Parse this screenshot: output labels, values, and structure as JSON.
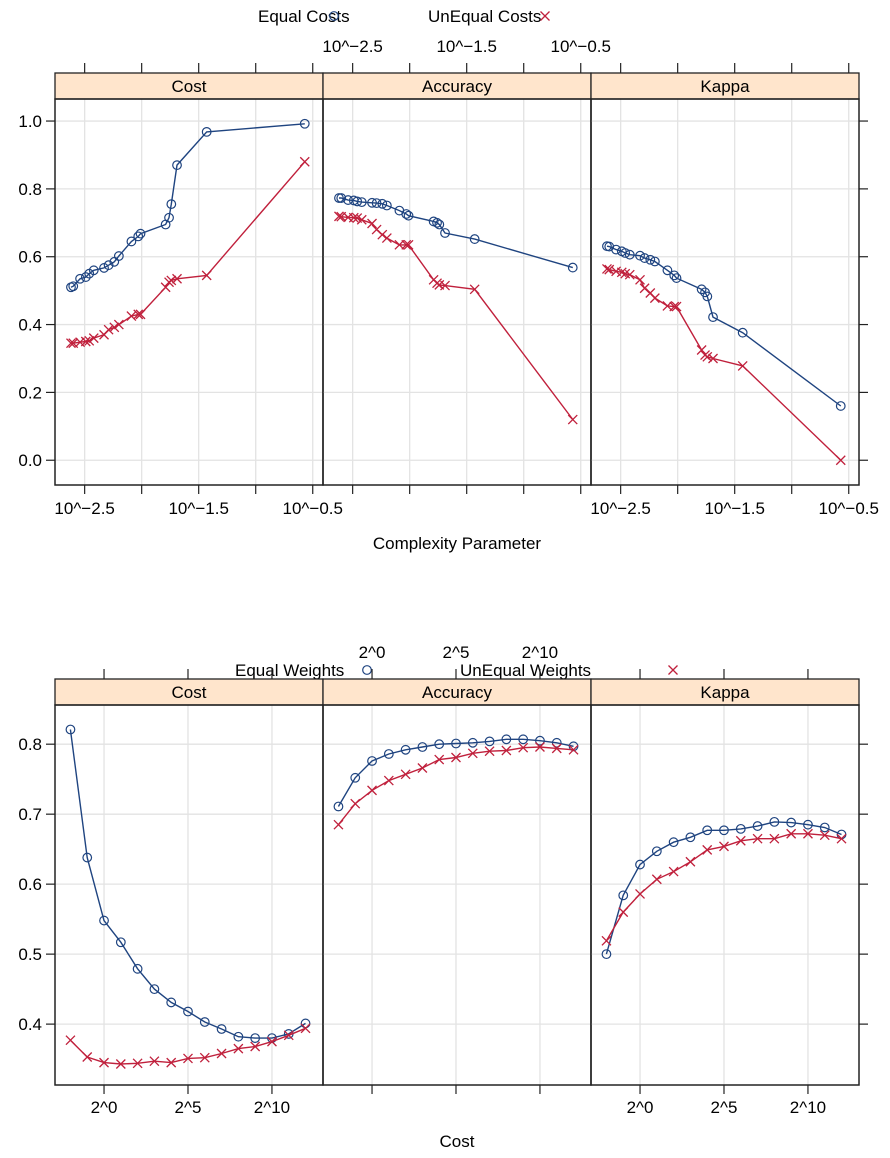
{
  "colors": {
    "equal": "#1f4480",
    "unequal": "#c0203c",
    "strip": "#ffe5cc",
    "grid": "#e3e3e3"
  },
  "chart_data": [
    {
      "type": "line",
      "panels": [
        "Cost",
        "Accuracy",
        "Kappa"
      ],
      "xlabel": "Complexity Parameter",
      "x_scale": "log10",
      "xlim": [
        -2.76,
        -0.41
      ],
      "ylim": [
        -0.073,
        1.065
      ],
      "x_ticks": [
        -2.5,
        -2,
        -1.5,
        -1,
        -0.5
      ],
      "x_tick_labels": [
        {
          "at": -2.5,
          "text": "10^−2.5"
        },
        {
          "at": -1.5,
          "text": "10^−1.5"
        },
        {
          "at": -0.5,
          "text": "10^−0.5"
        }
      ],
      "y_ticks": [
        {
          "at": 0,
          "text": "0.0"
        },
        {
          "at": 0.2,
          "text": "0.2"
        },
        {
          "at": 0.4,
          "text": "0.4"
        },
        {
          "at": 0.6,
          "text": "0.6"
        },
        {
          "at": 0.8,
          "text": "0.8"
        },
        {
          "at": 1.0,
          "text": "1.0"
        }
      ],
      "grid": true,
      "legend": "top",
      "x": [
        -2.62,
        -2.6,
        -2.54,
        -2.49,
        -2.46,
        -2.42,
        -2.33,
        -2.29,
        -2.24,
        -2.2,
        -2.09,
        -2.03,
        -2.01,
        -1.79,
        -1.76,
        -1.74,
        -1.69,
        -1.43,
        -0.57
      ],
      "series": [
        {
          "name": "Equal Costs",
          "marker": "circle",
          "values": {
            "Cost": [
              0.51,
              0.513,
              0.535,
              0.54,
              0.55,
              0.56,
              0.567,
              0.575,
              0.585,
              0.602,
              0.645,
              0.66,
              0.668,
              0.695,
              0.715,
              0.755,
              0.87,
              0.968,
              0.992
            ],
            "Accuracy": [
              0.773,
              0.773,
              0.767,
              0.766,
              0.763,
              0.761,
              0.759,
              0.758,
              0.756,
              0.751,
              0.736,
              0.726,
              0.721,
              0.704,
              0.7,
              0.695,
              0.67,
              0.652,
              0.568
            ],
            "Kappa": [
              0.631,
              0.63,
              0.621,
              0.616,
              0.611,
              0.606,
              0.603,
              0.596,
              0.591,
              0.586,
              0.56,
              0.545,
              0.537,
              0.504,
              0.495,
              0.483,
              0.422,
              0.376,
              0.16
            ]
          }
        },
        {
          "name": "UnEqual Costs",
          "marker": "cross",
          "values": {
            "Cost": [
              0.345,
              0.345,
              0.348,
              0.35,
              0.352,
              0.36,
              0.37,
              0.385,
              0.392,
              0.4,
              0.425,
              0.43,
              0.43,
              0.51,
              0.525,
              0.53,
              0.535,
              0.545,
              0.88
            ],
            "Accuracy": [
              0.719,
              0.718,
              0.716,
              0.715,
              0.714,
              0.709,
              0.698,
              0.68,
              0.665,
              0.655,
              0.635,
              0.635,
              0.635,
              0.532,
              0.522,
              0.517,
              0.515,
              0.504,
              0.12
            ],
            "Kappa": [
              0.564,
              0.562,
              0.557,
              0.554,
              0.55,
              0.547,
              0.532,
              0.507,
              0.493,
              0.478,
              0.455,
              0.453,
              0.453,
              0.325,
              0.31,
              0.305,
              0.3,
              0.278,
              0.0
            ]
          }
        }
      ]
    },
    {
      "type": "line",
      "panels": [
        "Cost",
        "Accuracy",
        "Kappa"
      ],
      "xlabel": "Cost",
      "x_scale": "log2",
      "xlim": [
        -2.92,
        13.04
      ],
      "ylim": [
        0.313,
        0.856
      ],
      "x_ticks": [
        0,
        5,
        10
      ],
      "x_tick_labels": [
        {
          "at": 0,
          "text": "2^0"
        },
        {
          "at": 5,
          "text": "2^5"
        },
        {
          "at": 10,
          "text": "2^10"
        }
      ],
      "y_ticks": [
        {
          "at": 0.4,
          "text": "0.4"
        },
        {
          "at": 0.5,
          "text": "0.5"
        },
        {
          "at": 0.6,
          "text": "0.6"
        },
        {
          "at": 0.7,
          "text": "0.7"
        },
        {
          "at": 0.8,
          "text": "0.8"
        }
      ],
      "grid": true,
      "legend": "top",
      "x": [
        -2,
        -1,
        0,
        1,
        2,
        3,
        4,
        5,
        6,
        7,
        8,
        9,
        10,
        11,
        12
      ],
      "series": [
        {
          "name": "Equal Weights",
          "marker": "circle",
          "values": {
            "Cost": [
              0.821,
              0.638,
              0.548,
              0.517,
              0.479,
              0.45,
              0.431,
              0.418,
              0.403,
              0.393,
              0.382,
              0.38,
              0.38,
              0.386,
              0.401
            ],
            "Accuracy": [
              0.711,
              0.752,
              0.776,
              0.786,
              0.792,
              0.796,
              0.8,
              0.801,
              0.802,
              0.804,
              0.807,
              0.807,
              0.805,
              0.802,
              0.797
            ],
            "Kappa": [
              0.5,
              0.584,
              0.628,
              0.647,
              0.66,
              0.667,
              0.677,
              0.677,
              0.679,
              0.683,
              0.689,
              0.688,
              0.685,
              0.681,
              0.671
            ]
          }
        },
        {
          "name": "UnEqual Weights",
          "marker": "cross",
          "values": {
            "Cost": [
              0.377,
              0.353,
              0.345,
              0.343,
              0.344,
              0.347,
              0.345,
              0.351,
              0.352,
              0.358,
              0.365,
              0.368,
              0.375,
              0.384,
              0.394
            ],
            "Accuracy": [
              0.685,
              0.715,
              0.734,
              0.748,
              0.757,
              0.766,
              0.778,
              0.781,
              0.787,
              0.79,
              0.791,
              0.795,
              0.796,
              0.794,
              0.792
            ],
            "Kappa": [
              0.519,
              0.56,
              0.586,
              0.607,
              0.618,
              0.632,
              0.649,
              0.654,
              0.662,
              0.665,
              0.665,
              0.672,
              0.672,
              0.67,
              0.665
            ]
          }
        }
      ]
    }
  ]
}
